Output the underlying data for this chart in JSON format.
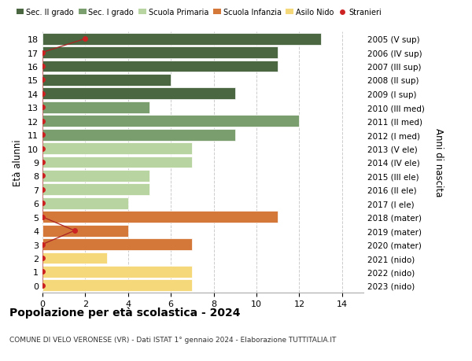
{
  "ages": [
    18,
    17,
    16,
    15,
    14,
    13,
    12,
    11,
    10,
    9,
    8,
    7,
    6,
    5,
    4,
    3,
    2,
    1,
    0
  ],
  "right_labels": [
    "2005 (V sup)",
    "2006 (IV sup)",
    "2007 (III sup)",
    "2008 (II sup)",
    "2009 (I sup)",
    "2010 (III med)",
    "2011 (II med)",
    "2012 (I med)",
    "2013 (V ele)",
    "2014 (IV ele)",
    "2015 (III ele)",
    "2016 (II ele)",
    "2017 (I ele)",
    "2018 (mater)",
    "2019 (mater)",
    "2020 (mater)",
    "2021 (nido)",
    "2022 (nido)",
    "2023 (nido)"
  ],
  "bar_values": [
    13,
    11,
    11,
    6,
    9,
    5,
    12,
    9,
    7,
    7,
    5,
    5,
    4,
    11,
    4,
    7,
    3,
    7,
    7
  ],
  "bar_colors": [
    "#4a6741",
    "#4a6741",
    "#4a6741",
    "#4a6741",
    "#4a6741",
    "#7a9e6e",
    "#7a9e6e",
    "#7a9e6e",
    "#b8d4a0",
    "#b8d4a0",
    "#b8d4a0",
    "#b8d4a0",
    "#b8d4a0",
    "#d4783a",
    "#d4783a",
    "#d4783a",
    "#f5d87a",
    "#f5d87a",
    "#f5d87a"
  ],
  "stranieri_x": [
    2,
    0,
    0,
    0,
    0,
    0,
    0,
    0,
    0,
    0,
    0,
    0,
    0,
    0,
    1.5,
    0,
    0,
    0,
    0
  ],
  "legend_labels": [
    "Sec. II grado",
    "Sec. I grado",
    "Scuola Primaria",
    "Scuola Infanzia",
    "Asilo Nido",
    "Stranieri"
  ],
  "legend_colors": [
    "#4a6741",
    "#7a9e6e",
    "#b8d4a0",
    "#d4783a",
    "#f5d87a",
    "#cc2222"
  ],
  "ylabel_left": "Età alunni",
  "ylabel_right": "Anni di nascita",
  "xlim": [
    0,
    15
  ],
  "xticks": [
    0,
    2,
    4,
    6,
    8,
    10,
    12,
    14
  ],
  "title": "Popolazione per età scolastica - 2024",
  "subtitle": "COMUNE DI VELO VERONESE (VR) - Dati ISTAT 1° gennaio 2024 - Elaborazione TUTTITALIA.IT",
  "background_color": "#ffffff",
  "grid_color": "#cccccc"
}
